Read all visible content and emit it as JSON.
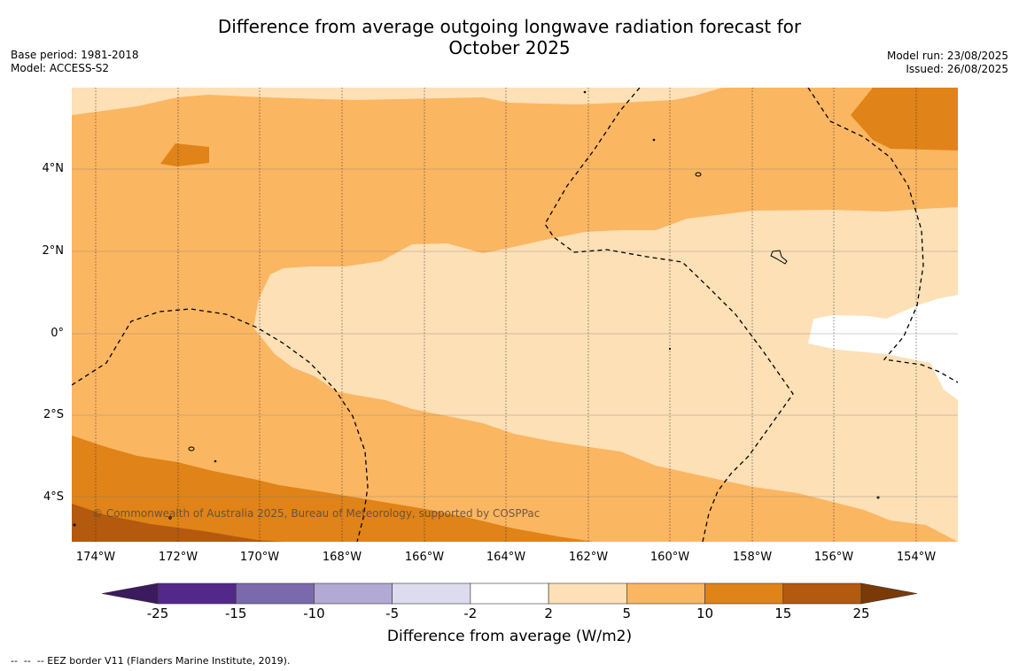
{
  "title_line1": "Difference from average outgoing longwave radiation forecast for",
  "title_line2": "October 2025",
  "meta_left": {
    "base_period": "Base period: 1981-2018",
    "model": "Model: ACCESS-S2"
  },
  "meta_right": {
    "model_run": "Model run: 23/08/2025",
    "issued": "Issued: 26/08/2025"
  },
  "map": {
    "x_ticks": [
      "174°W",
      "172°W",
      "170°W",
      "168°W",
      "166°W",
      "164°W",
      "162°W",
      "160°W",
      "158°W",
      "156°W",
      "154°W"
    ],
    "y_ticks": [
      "4°N",
      "2°N",
      "0°",
      "2°S",
      "4°S"
    ],
    "credit": "© Commonwealth of Australia 2025, Bureau of Meteorology, supported by COSPPac"
  },
  "colorbar": {
    "title": "Difference from average (W/m2)",
    "tick_labels": [
      "-25",
      "-15",
      "-10",
      "-5",
      "-2",
      "2",
      "5",
      "10",
      "15",
      "25"
    ],
    "colors": [
      "#3b1a5e",
      "#52288a",
      "#7b6aab",
      "#b2a9d4",
      "#dcdcee",
      "#ffffff",
      "#fde0b6",
      "#fbb662",
      "#e08318",
      "#b35a0e",
      "#7a3a08"
    ]
  },
  "footnote": "--  --  -- EEZ border V11 (Flanders Marine Institute, 2019)."
}
